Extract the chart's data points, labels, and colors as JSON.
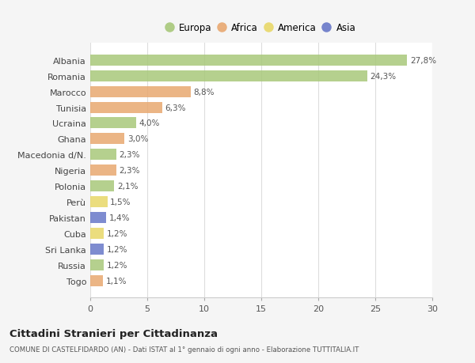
{
  "countries": [
    "Albania",
    "Romania",
    "Marocco",
    "Tunisia",
    "Ucraina",
    "Ghana",
    "Macedonia d/N.",
    "Nigeria",
    "Polonia",
    "Perù",
    "Pakistan",
    "Cuba",
    "Sri Lanka",
    "Russia",
    "Togo"
  ],
  "values": [
    27.8,
    24.3,
    8.8,
    6.3,
    4.0,
    3.0,
    2.3,
    2.3,
    2.1,
    1.5,
    1.4,
    1.2,
    1.2,
    1.2,
    1.1
  ],
  "labels": [
    "27,8%",
    "24,3%",
    "8,8%",
    "6,3%",
    "4,0%",
    "3,0%",
    "2,3%",
    "2,3%",
    "2,1%",
    "1,5%",
    "1,4%",
    "1,2%",
    "1,2%",
    "1,2%",
    "1,1%"
  ],
  "continents": [
    "Europa",
    "Europa",
    "Africa",
    "Africa",
    "Europa",
    "Africa",
    "Europa",
    "Africa",
    "Europa",
    "America",
    "Asia",
    "America",
    "Asia",
    "Europa",
    "Africa"
  ],
  "colors": {
    "Europa": "#a8c87a",
    "Africa": "#e8a870",
    "America": "#e8d868",
    "Asia": "#6878c8"
  },
  "background_color": "#f5f5f5",
  "plot_background": "#ffffff",
  "title": "Cittadini Stranieri per Cittadinanza",
  "subtitle": "COMUNE DI CASTELFIDARDO (AN) - Dati ISTAT al 1° gennaio di ogni anno - Elaborazione TUTTITALIA.IT",
  "xlim": [
    0,
    30
  ],
  "xticks": [
    0,
    5,
    10,
    15,
    20,
    25,
    30
  ],
  "legend_order": [
    "Europa",
    "Africa",
    "America",
    "Asia"
  ]
}
